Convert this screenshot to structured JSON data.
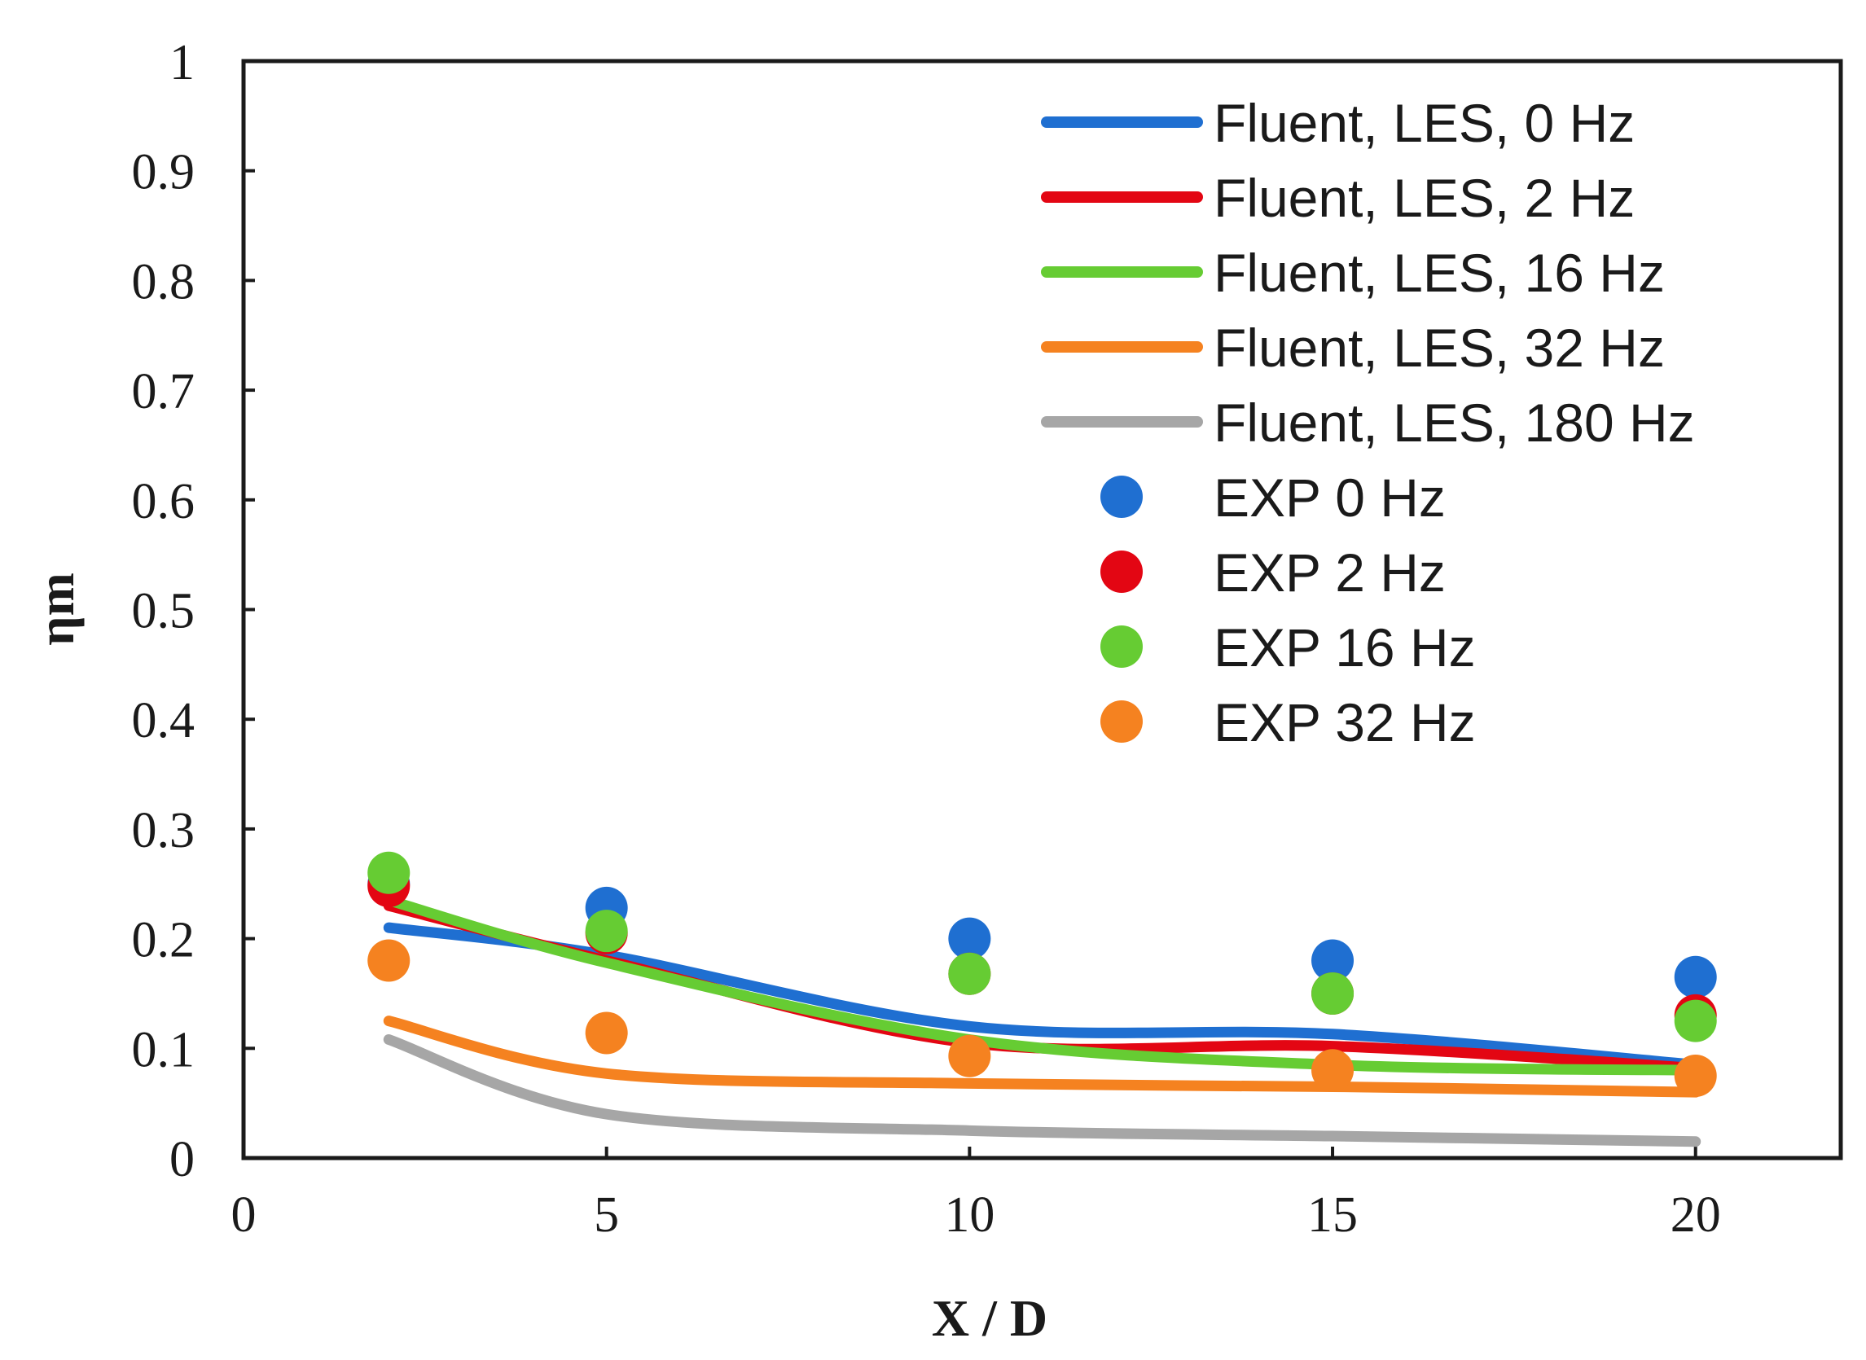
{
  "chart_data": {
    "type": "line",
    "title": "",
    "xlabel": "X / D",
    "ylabel": "ηm",
    "xlim": [
      0,
      22
    ],
    "ylim": [
      0,
      1
    ],
    "xticks": [
      0,
      5,
      10,
      15,
      20
    ],
    "yticks": [
      0,
      0.1,
      0.2,
      0.3,
      0.4,
      0.5,
      0.6,
      0.7,
      0.8,
      0.9,
      1
    ],
    "ytick_labels": [
      "0",
      "0.1",
      "0.2",
      "0.3",
      "0.4",
      "0.5",
      "0.6",
      "0.7",
      "0.8",
      "0.9",
      "1"
    ],
    "xtick_labels": [
      "0",
      "5",
      "10",
      "15",
      "20"
    ],
    "grid": false,
    "legend_position": "top-right",
    "line_series": [
      {
        "name": "Fluent, LES, 0 Hz",
        "color": "#1f6fd1",
        "x": [
          2,
          5,
          10,
          15,
          20
        ],
        "y": [
          0.21,
          0.185,
          0.12,
          0.113,
          0.085
        ]
      },
      {
        "name": "Fluent, LES, 2 Hz",
        "color": "#e30613",
        "x": [
          2,
          5,
          10,
          15,
          20
        ],
        "y": [
          0.23,
          0.18,
          0.105,
          0.102,
          0.082
        ]
      },
      {
        "name": "Fluent, LES, 16 Hz",
        "color": "#66cc33",
        "x": [
          2,
          5,
          10,
          15,
          20
        ],
        "y": [
          0.235,
          0.178,
          0.108,
          0.085,
          0.08
        ]
      },
      {
        "name": "Fluent, LES, 32 Hz",
        "color": "#f58220",
        "x": [
          2,
          5,
          10,
          15,
          20
        ],
        "y": [
          0.125,
          0.077,
          0.068,
          0.065,
          0.06
        ]
      },
      {
        "name": "Fluent, LES, 180 Hz",
        "color": "#a6a6a6",
        "x": [
          2,
          5,
          10,
          15,
          20
        ],
        "y": [
          0.108,
          0.04,
          0.025,
          0.02,
          0.015
        ]
      }
    ],
    "scatter_series": [
      {
        "name": "EXP 0 Hz",
        "color": "#1f6fd1",
        "x": [
          2,
          5,
          10,
          15,
          20
        ],
        "y": [
          0.25,
          0.228,
          0.2,
          0.18,
          0.165
        ]
      },
      {
        "name": "EXP 2 Hz",
        "color": "#e30613",
        "x": [
          2,
          5,
          10,
          15,
          20
        ],
        "y": [
          0.248,
          0.205,
          0.168,
          0.15,
          0.13
        ]
      },
      {
        "name": "EXP 16 Hz",
        "color": "#66cc33",
        "x": [
          2,
          5,
          10,
          15,
          20
        ],
        "y": [
          0.26,
          0.207,
          0.168,
          0.15,
          0.125
        ]
      },
      {
        "name": "EXP 32 Hz",
        "color": "#f58220",
        "x": [
          2,
          5,
          10,
          15,
          20
        ],
        "y": [
          0.18,
          0.114,
          0.093,
          0.08,
          0.075
        ]
      }
    ]
  }
}
